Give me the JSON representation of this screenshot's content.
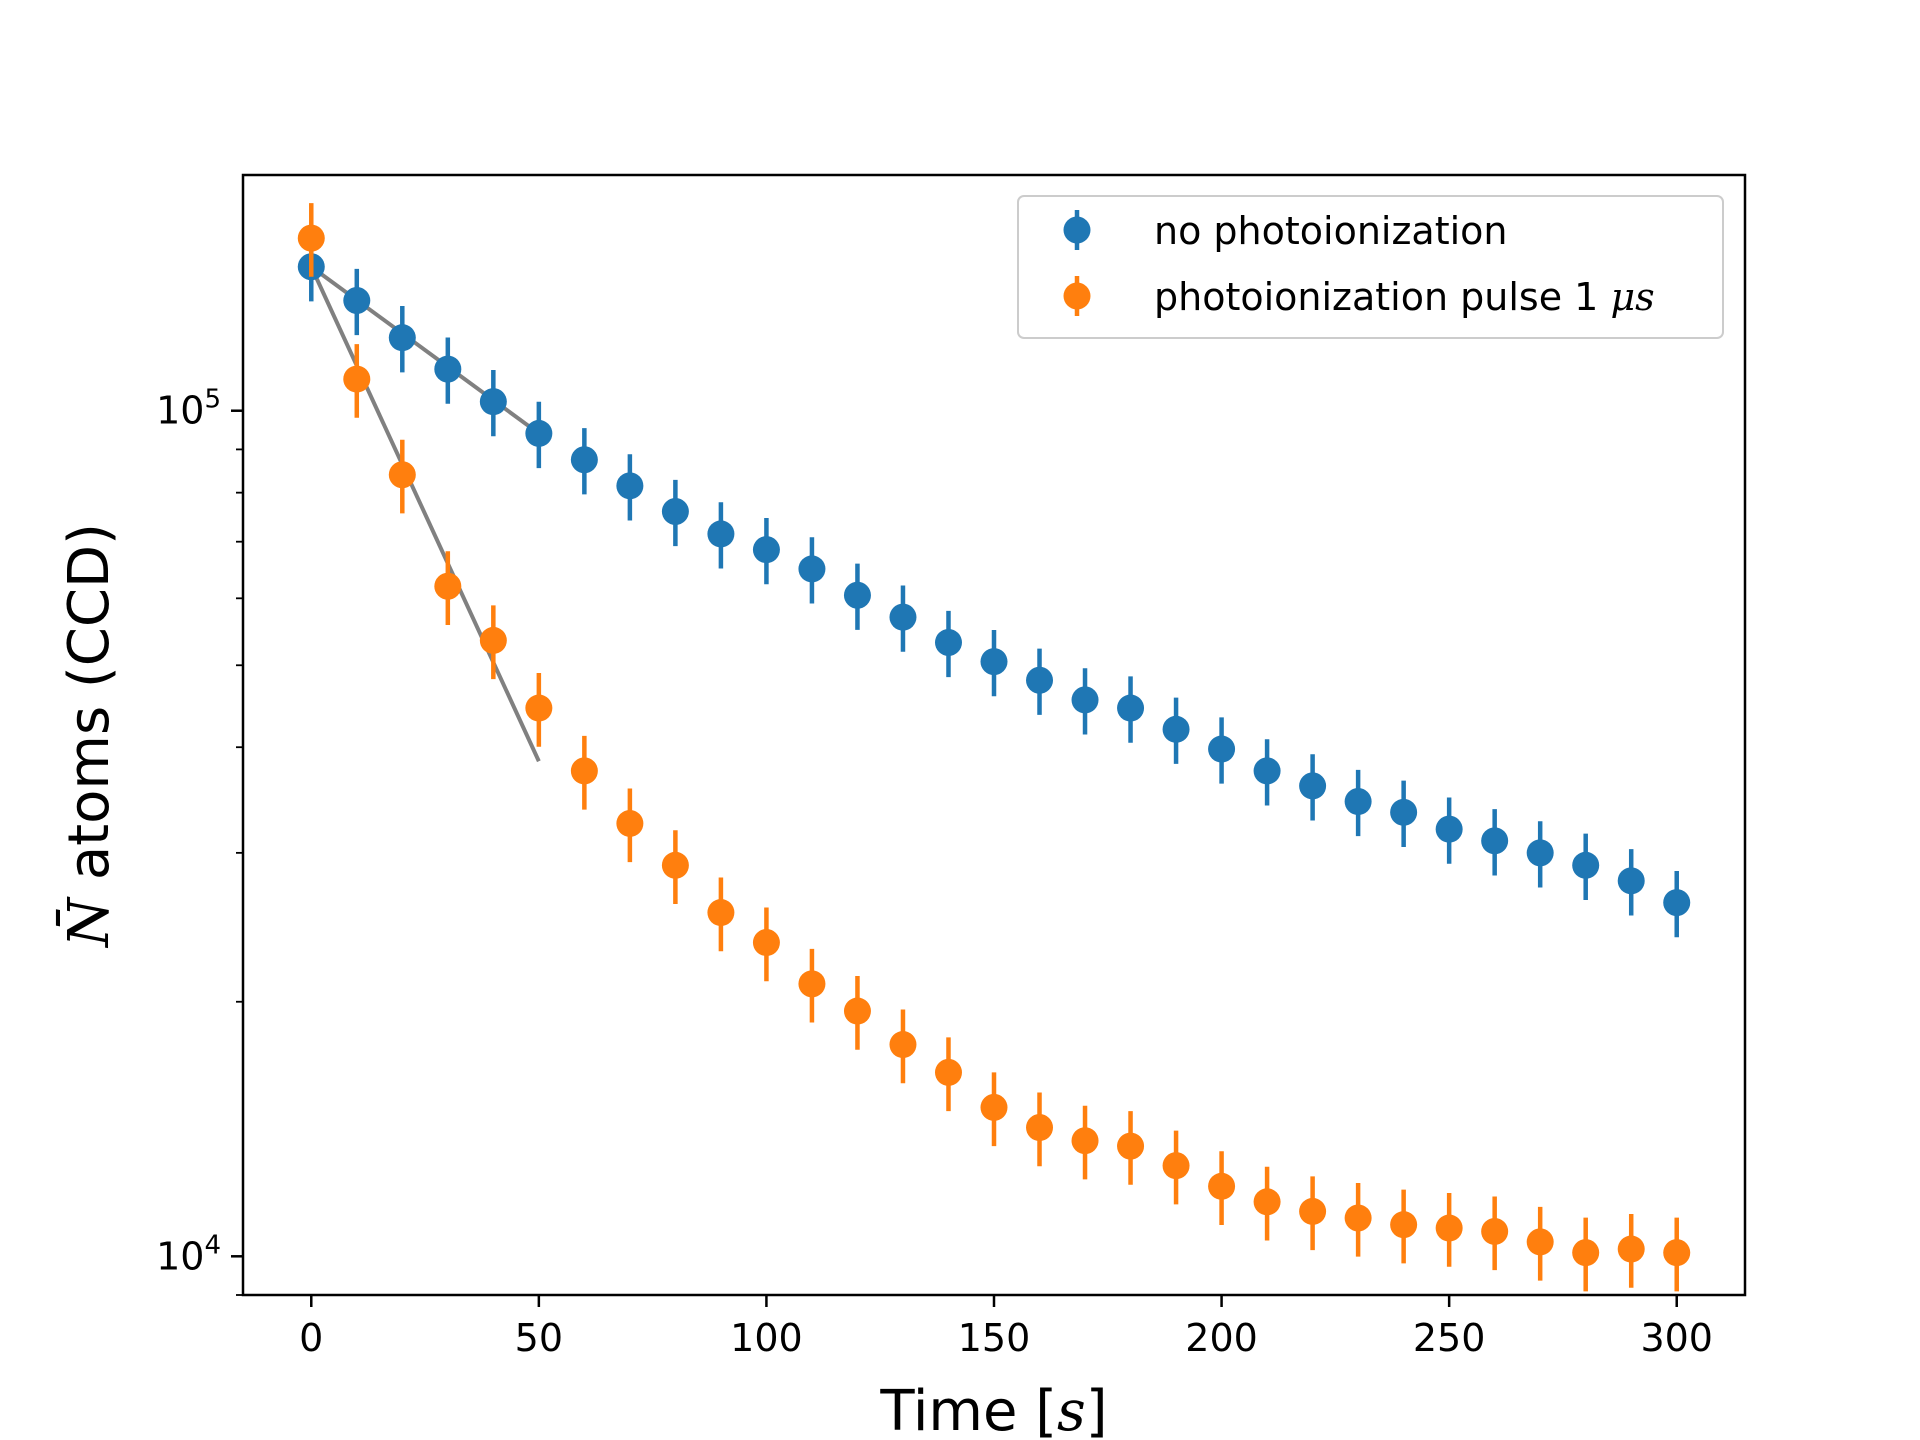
{
  "chart_data": {
    "type": "scatter",
    "xlabel_prefix": "Time [",
    "xlabel_var": "s",
    "xlabel_suffix": "]",
    "ylabel_symbol": "N̄",
    "ylabel_rest": " atoms (CCD)",
    "xlim": [
      -15,
      315
    ],
    "ylim": [
      9000,
      190000
    ],
    "yscale": "log",
    "grid": false,
    "legend_position": "top-right",
    "x_ticks": [
      0,
      50,
      100,
      150,
      200,
      250,
      300
    ],
    "x_tick_labels": [
      "0",
      "50",
      "100",
      "150",
      "200",
      "250",
      "300"
    ],
    "y_ticks": [
      10000,
      100000
    ],
    "y_tick_labels": [
      {
        "base": "10",
        "exp": "4"
      },
      {
        "base": "10",
        "exp": "5"
      }
    ],
    "x": [
      0,
      10,
      20,
      30,
      40,
      50,
      60,
      70,
      80,
      90,
      100,
      110,
      120,
      130,
      140,
      150,
      160,
      170,
      180,
      190,
      200,
      210,
      220,
      230,
      240,
      250,
      260,
      270,
      280,
      290,
      300
    ],
    "series": [
      {
        "name": "no photoionization",
        "color": "#1f77b4",
        "values": [
          148000,
          135000,
          122000,
          112000,
          102500,
          94000,
          87500,
          81500,
          76000,
          71500,
          68500,
          65000,
          60500,
          57000,
          53200,
          50500,
          48000,
          45500,
          44500,
          42000,
          39800,
          37500,
          36000,
          34500,
          33500,
          32000,
          31000,
          30000,
          29000,
          27800,
          26200
        ],
        "err_rel": 0.09
      },
      {
        "name_prefix": "photoionization pulse 1 ",
        "name_var": "μs",
        "color": "#ff7f0e",
        "values": [
          160000,
          109000,
          84000,
          62000,
          53500,
          44500,
          37500,
          32500,
          29000,
          25500,
          23500,
          21000,
          19500,
          17800,
          16500,
          15000,
          14200,
          13700,
          13500,
          12800,
          12100,
          11600,
          11300,
          11100,
          10900,
          10800,
          10700,
          10400,
          10100,
          10200,
          10100
        ],
        "err_rel": 0.1
      }
    ],
    "fit_lines": [
      {
        "color": "#808080",
        "x": [
          0,
          50
        ],
        "y": [
          148000,
          94000
        ]
      },
      {
        "color": "#808080",
        "x": [
          0,
          50
        ],
        "y": [
          148000,
          38500
        ]
      }
    ]
  }
}
